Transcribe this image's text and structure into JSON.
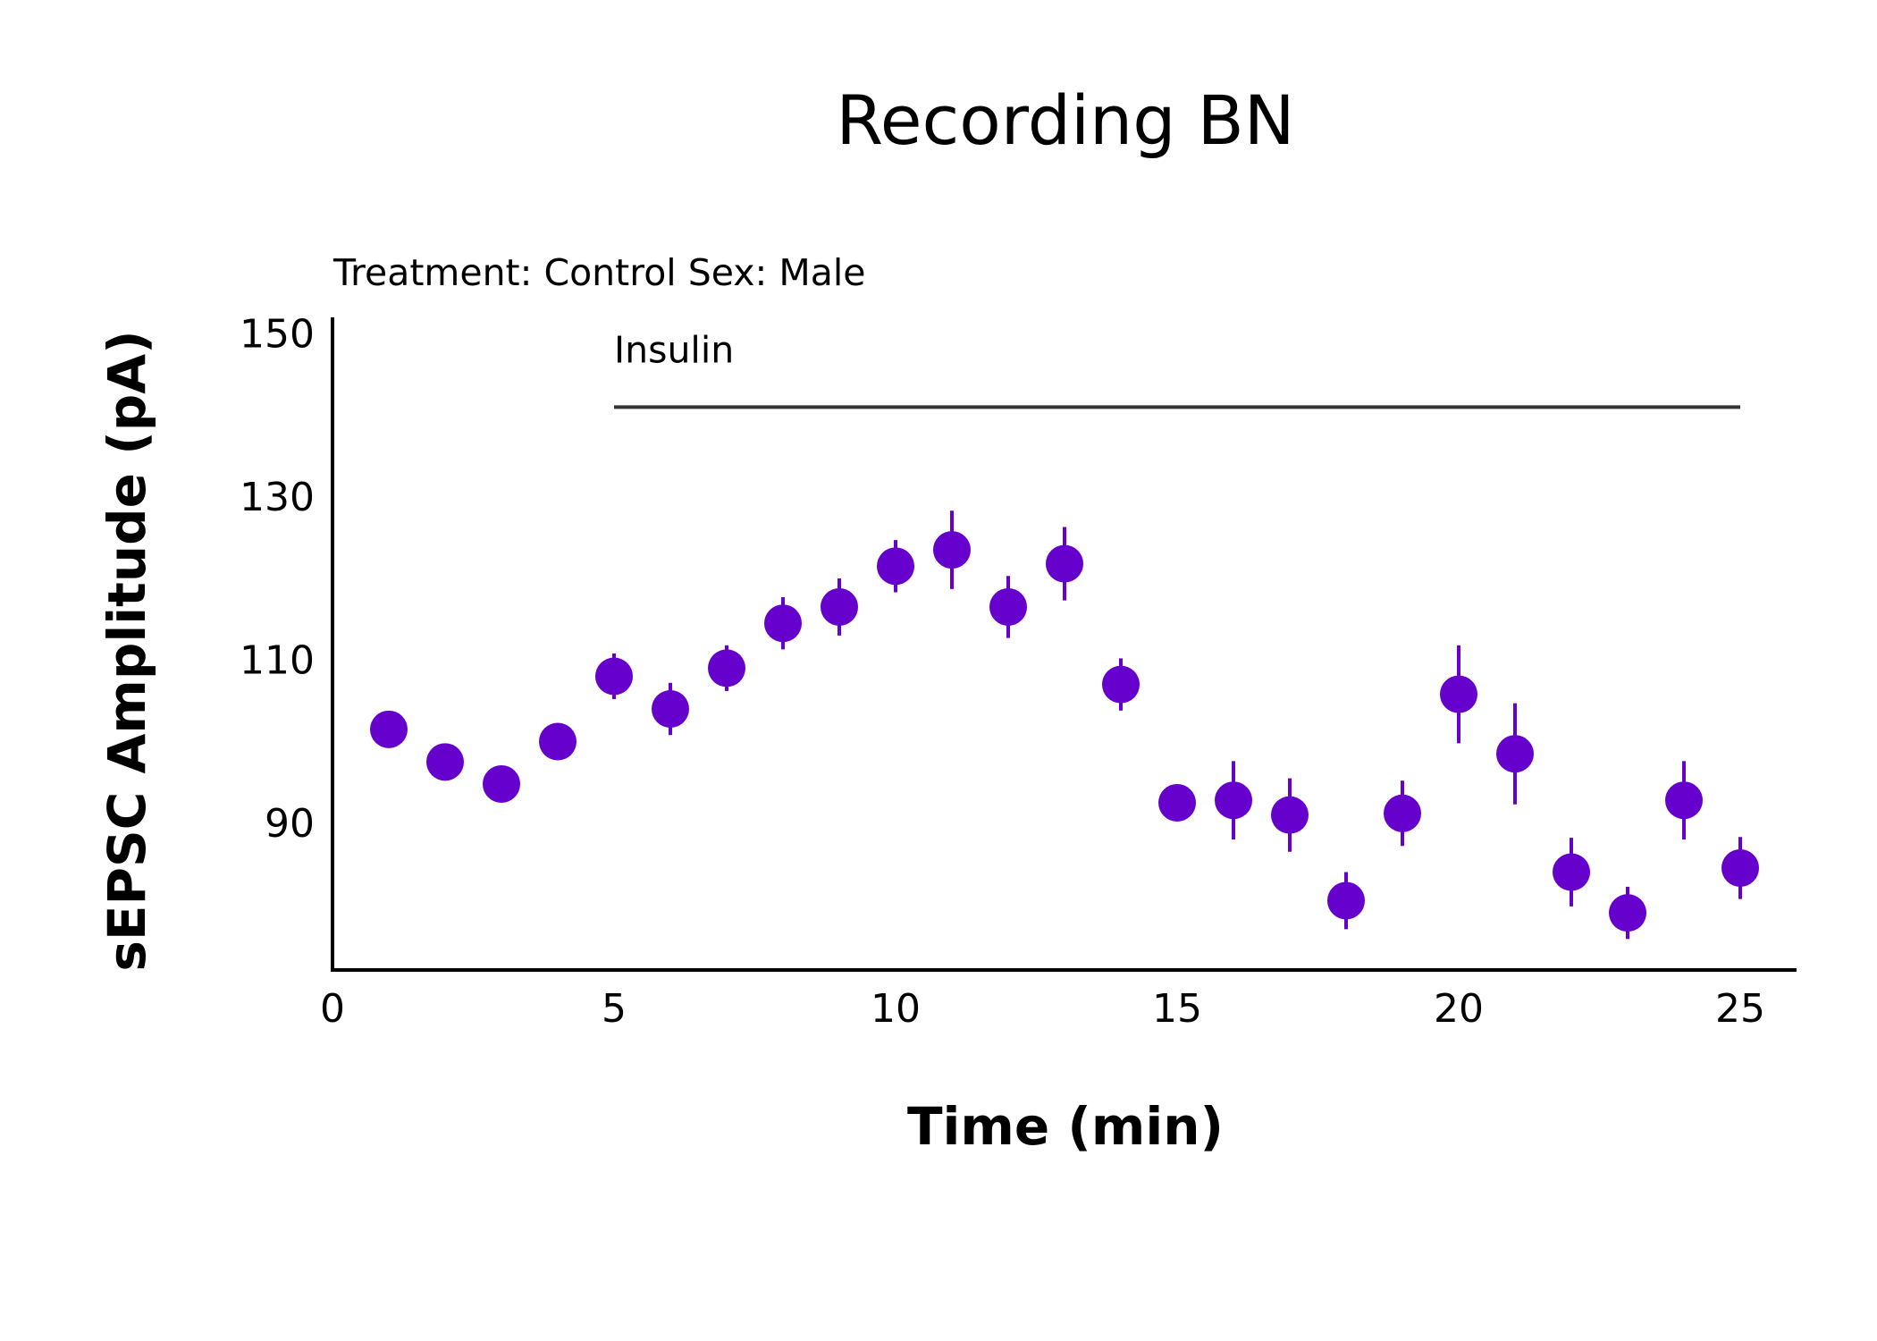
{
  "chart_data": {
    "type": "scatter",
    "title": "Recording BN",
    "subtitle": "Treatment: Control  Sex: Male",
    "xlabel": "Time (min)",
    "ylabel": "sEPSC Amplitude (pA)",
    "xlim": [
      0,
      26
    ],
    "ylim": [
      72,
      152
    ],
    "xticks": [
      0,
      5,
      10,
      15,
      20,
      25
    ],
    "xtick_labels": [
      "0",
      "5",
      "10",
      "15",
      "20",
      "25"
    ],
    "yticks": [
      90,
      110,
      130,
      150
    ],
    "ytick_labels": [
      "90",
      "110",
      "130",
      "150"
    ],
    "grid": false,
    "legend": "none",
    "point_color": "#6600cc",
    "annotation": {
      "label": "Insulin",
      "x_start": 5,
      "x_end": 25,
      "y": 141,
      "color": "#333333"
    },
    "series": [
      {
        "x": [
          1,
          2,
          3,
          4,
          5,
          6,
          7,
          8,
          9,
          10,
          11,
          12,
          13,
          14,
          15,
          16,
          17,
          18,
          19,
          20,
          21,
          22,
          23,
          24,
          25
        ],
        "y": [
          101.5,
          97.5,
          94.8,
          100.0,
          108.0,
          104.0,
          109.0,
          114.5,
          116.5,
          121.5,
          123.5,
          116.5,
          121.8,
          107.0,
          92.5,
          92.8,
          91.0,
          80.5,
          91.2,
          105.8,
          98.5,
          84.0,
          79.0,
          92.8,
          84.5
        ],
        "error": [
          0.8,
          0.8,
          1.0,
          2.2,
          2.8,
          3.2,
          2.8,
          3.2,
          3.5,
          3.2,
          4.8,
          3.8,
          4.5,
          3.2,
          1.2,
          4.8,
          4.5,
          3.5,
          4.0,
          6.0,
          6.2,
          4.2,
          3.2,
          4.8,
          3.8
        ]
      }
    ]
  }
}
